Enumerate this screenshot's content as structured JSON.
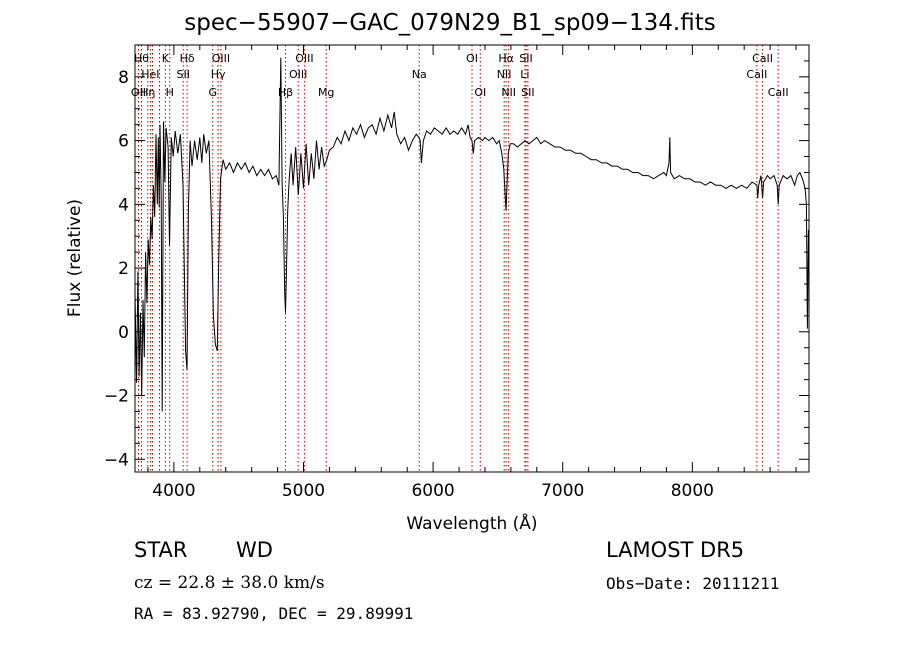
{
  "chart_data": {
    "type": "line",
    "title": "spec−55907−GAC_079N29_B1_sp09−134.fits",
    "xlabel": "Wavelength (Å)",
    "ylabel": "Flux (relative)",
    "xlim": [
      3700,
      8900
    ],
    "ylim": [
      -4.4,
      9.0
    ],
    "xticks": [
      4000,
      5000,
      6000,
      7000,
      8000
    ],
    "yticks": [
      -4,
      -2,
      0,
      2,
      4,
      6,
      8
    ],
    "series": [
      {
        "values": [
          [
            3700,
            1.2
          ],
          [
            3712,
            -1.6
          ],
          [
            3722,
            1.9
          ],
          [
            3732,
            -1.4
          ],
          [
            3742,
            0.6
          ],
          [
            3752,
            -2.0
          ],
          [
            3762,
            1.0
          ],
          [
            3772,
            -0.8
          ],
          [
            3782,
            2.5
          ],
          [
            3792,
            0.9
          ],
          [
            3802,
            2.9
          ],
          [
            3812,
            2.1
          ],
          [
            3822,
            3.6
          ],
          [
            3832,
            2.9
          ],
          [
            3842,
            4.6
          ],
          [
            3852,
            3.6
          ],
          [
            3862,
            6.2
          ],
          [
            3872,
            4.0
          ],
          [
            3880,
            6.1
          ],
          [
            3887,
            3.9
          ],
          [
            3893,
            6.5
          ],
          [
            3902,
            4.2
          ],
          [
            3910,
            -2.5
          ],
          [
            3920,
            6.6
          ],
          [
            3930,
            4.7
          ],
          [
            3940,
            6.4
          ],
          [
            3955,
            5.8
          ],
          [
            3966,
            2.7
          ],
          [
            3980,
            6.1
          ],
          [
            3995,
            5.5
          ],
          [
            4010,
            6.3
          ],
          [
            4030,
            5.6
          ],
          [
            4050,
            6.2
          ],
          [
            4070,
            4.6
          ],
          [
            4090,
            -0.6
          ],
          [
            4101,
            -1.2
          ],
          [
            4112,
            3.8
          ],
          [
            4125,
            6.0
          ],
          [
            4140,
            5.2
          ],
          [
            4160,
            6.0
          ],
          [
            4180,
            5.4
          ],
          [
            4200,
            6.1
          ],
          [
            4215,
            5.3
          ],
          [
            4230,
            6.2
          ],
          [
            4250,
            5.6
          ],
          [
            4270,
            6.0
          ],
          [
            4290,
            3.5
          ],
          [
            4305,
            0.5
          ],
          [
            4320,
            -0.4
          ],
          [
            4335,
            -0.6
          ],
          [
            4345,
            2.0
          ],
          [
            4360,
            4.8
          ],
          [
            4380,
            5.4
          ],
          [
            4400,
            5.1
          ],
          [
            4430,
            5.3
          ],
          [
            4460,
            5.0
          ],
          [
            4490,
            5.3
          ],
          [
            4520,
            5.1
          ],
          [
            4550,
            5.3
          ],
          [
            4580,
            5.0
          ],
          [
            4610,
            5.2
          ],
          [
            4640,
            4.9
          ],
          [
            4670,
            5.1
          ],
          [
            4700,
            4.9
          ],
          [
            4730,
            5.1
          ],
          [
            4760,
            4.8
          ],
          [
            4790,
            4.9
          ],
          [
            4810,
            4.6
          ],
          [
            4825,
            8.6
          ],
          [
            4835,
            4.7
          ],
          [
            4845,
            3.6
          ],
          [
            4855,
            1.2
          ],
          [
            4861,
            0.6
          ],
          [
            4868,
            1.8
          ],
          [
            4878,
            3.8
          ],
          [
            4890,
            4.8
          ],
          [
            4905,
            5.6
          ],
          [
            4920,
            4.6
          ],
          [
            4940,
            5.8
          ],
          [
            4960,
            4.3
          ],
          [
            4980,
            5.6
          ],
          [
            5000,
            4.5
          ],
          [
            5020,
            5.9
          ],
          [
            5040,
            4.6
          ],
          [
            5060,
            5.6
          ],
          [
            5080,
            4.8
          ],
          [
            5100,
            6.0
          ],
          [
            5120,
            5.1
          ],
          [
            5140,
            5.8
          ],
          [
            5160,
            5.2
          ],
          [
            5180,
            5.4
          ],
          [
            5200,
            5.7
          ],
          [
            5230,
            5.8
          ],
          [
            5260,
            6.1
          ],
          [
            5290,
            5.9
          ],
          [
            5320,
            6.3
          ],
          [
            5350,
            6.0
          ],
          [
            5380,
            6.4
          ],
          [
            5410,
            6.2
          ],
          [
            5440,
            6.5
          ],
          [
            5470,
            6.1
          ],
          [
            5500,
            6.4
          ],
          [
            5530,
            6.5
          ],
          [
            5560,
            6.2
          ],
          [
            5590,
            6.7
          ],
          [
            5620,
            6.3
          ],
          [
            5650,
            6.8
          ],
          [
            5680,
            6.4
          ],
          [
            5700,
            6.9
          ],
          [
            5720,
            6.2
          ],
          [
            5750,
            5.9
          ],
          [
            5780,
            6.1
          ],
          [
            5810,
            5.7
          ],
          [
            5840,
            6.0
          ],
          [
            5870,
            6.2
          ],
          [
            5890,
            6.1
          ],
          [
            5900,
            6.0
          ],
          [
            5910,
            5.3
          ],
          [
            5925,
            6.0
          ],
          [
            5950,
            6.3
          ],
          [
            5980,
            6.2
          ],
          [
            6010,
            6.4
          ],
          [
            6040,
            6.3
          ],
          [
            6070,
            6.2
          ],
          [
            6100,
            6.4
          ],
          [
            6130,
            6.2
          ],
          [
            6160,
            6.3
          ],
          [
            6190,
            6.2
          ],
          [
            6220,
            6.4
          ],
          [
            6250,
            6.2
          ],
          [
            6270,
            6.5
          ],
          [
            6285,
            6.1
          ],
          [
            6300,
            6.0
          ],
          [
            6310,
            5.6
          ],
          [
            6320,
            6.0
          ],
          [
            6350,
            6.1
          ],
          [
            6380,
            6.0
          ],
          [
            6400,
            6.1
          ],
          [
            6430,
            6.0
          ],
          [
            6460,
            6.1
          ],
          [
            6490,
            5.9
          ],
          [
            6510,
            6.0
          ],
          [
            6530,
            5.6
          ],
          [
            6545,
            5.1
          ],
          [
            6555,
            4.3
          ],
          [
            6563,
            3.8
          ],
          [
            6570,
            4.6
          ],
          [
            6580,
            5.6
          ],
          [
            6595,
            5.9
          ],
          [
            6620,
            5.9
          ],
          [
            6650,
            5.8
          ],
          [
            6680,
            5.9
          ],
          [
            6710,
            6.0
          ],
          [
            6740,
            5.9
          ],
          [
            6770,
            6.0
          ],
          [
            6800,
            6.1
          ],
          [
            6830,
            5.9
          ],
          [
            6860,
            6.0
          ],
          [
            6900,
            5.9
          ],
          [
            6940,
            5.8
          ],
          [
            6980,
            5.8
          ],
          [
            7020,
            5.7
          ],
          [
            7060,
            5.7
          ],
          [
            7100,
            5.6
          ],
          [
            7140,
            5.6
          ],
          [
            7180,
            5.5
          ],
          [
            7220,
            5.4
          ],
          [
            7260,
            5.4
          ],
          [
            7300,
            5.3
          ],
          [
            7340,
            5.3
          ],
          [
            7380,
            5.2
          ],
          [
            7420,
            5.2
          ],
          [
            7460,
            5.1
          ],
          [
            7500,
            5.1
          ],
          [
            7540,
            5.0
          ],
          [
            7580,
            5.0
          ],
          [
            7620,
            4.9
          ],
          [
            7660,
            4.9
          ],
          [
            7700,
            4.8
          ],
          [
            7740,
            4.9
          ],
          [
            7780,
            5.0
          ],
          [
            7800,
            4.9
          ],
          [
            7820,
            5.3
          ],
          [
            7826,
            6.1
          ],
          [
            7832,
            5.0
          ],
          [
            7860,
            4.8
          ],
          [
            7900,
            4.9
          ],
          [
            7940,
            4.8
          ],
          [
            7980,
            4.8
          ],
          [
            8020,
            4.7
          ],
          [
            8060,
            4.7
          ],
          [
            8100,
            4.6
          ],
          [
            8140,
            4.7
          ],
          [
            8180,
            4.6
          ],
          [
            8220,
            4.6
          ],
          [
            8260,
            4.5
          ],
          [
            8300,
            4.6
          ],
          [
            8340,
            4.5
          ],
          [
            8380,
            4.6
          ],
          [
            8420,
            4.5
          ],
          [
            8460,
            4.7
          ],
          [
            8498,
            4.6
          ],
          [
            8505,
            4.2
          ],
          [
            8512,
            4.6
          ],
          [
            8530,
            4.9
          ],
          [
            8542,
            4.2
          ],
          [
            8550,
            4.7
          ],
          [
            8580,
            4.9
          ],
          [
            8600,
            4.8
          ],
          [
            8630,
            4.9
          ],
          [
            8655,
            4.6
          ],
          [
            8662,
            4.0
          ],
          [
            8670,
            4.6
          ],
          [
            8700,
            4.9
          ],
          [
            8730,
            4.8
          ],
          [
            8760,
            4.9
          ],
          [
            8790,
            4.6
          ],
          [
            8810,
            4.9
          ],
          [
            8830,
            5.0
          ],
          [
            8850,
            4.8
          ],
          [
            8870,
            4.5
          ],
          [
            8880,
            4.0
          ],
          [
            8888,
            0.1
          ],
          [
            8895,
            3.2
          ]
        ]
      }
    ],
    "lines": [
      {
        "x": 3727,
        "label": "OII",
        "row": 3
      },
      {
        "x": 3750,
        "label": "Hθ",
        "row": 1
      },
      {
        "x": 3798,
        "label": "Hη",
        "row": 3
      },
      {
        "x": 3819,
        "label": "HeI",
        "row": 2
      },
      {
        "x": 3835,
        "label": "",
        "row": 0
      },
      {
        "x": 3889,
        "label": "",
        "row": 0
      },
      {
        "x": 3934,
        "label": "K",
        "row": 1
      },
      {
        "x": 3968,
        "label": "H",
        "row": 3
      },
      {
        "x": 4072,
        "label": "SII",
        "row": 2
      },
      {
        "x": 4102,
        "label": "Hδ",
        "row": 1
      },
      {
        "x": 4300,
        "label": "G",
        "row": 3
      },
      {
        "x": 4341,
        "label": "Hγ",
        "row": 2
      },
      {
        "x": 4363,
        "label": "OIII",
        "row": 1
      },
      {
        "x": 4861,
        "label": "Hβ",
        "row": 3
      },
      {
        "x": 4959,
        "label": "OIII",
        "row": 2
      },
      {
        "x": 5007,
        "label": "OIII",
        "row": 1
      },
      {
        "x": 5175,
        "label": "Mg",
        "row": 3
      },
      {
        "x": 5893,
        "label": "Na",
        "row": 2
      },
      {
        "x": 6300,
        "label": "OI",
        "row": 1
      },
      {
        "x": 6364,
        "label": "OI",
        "row": 3
      },
      {
        "x": 6548,
        "label": "NII",
        "row": 2
      },
      {
        "x": 6563,
        "label": "Hα",
        "row": 1
      },
      {
        "x": 6583,
        "label": "NII",
        "row": 3
      },
      {
        "x": 6708,
        "label": "Li",
        "row": 2
      },
      {
        "x": 6717,
        "label": "SII",
        "row": 1
      },
      {
        "x": 6731,
        "label": "SII",
        "row": 3
      },
      {
        "x": 8498,
        "label": "CaII",
        "row": 2
      },
      {
        "x": 8542,
        "label": "CaII",
        "row": 1
      },
      {
        "x": 8662,
        "label": "CaII",
        "row": 3
      }
    ]
  },
  "info": {
    "class_label": "STAR",
    "subclass": "WD",
    "survey": "LAMOST DR5",
    "cz": "cz = 22.8 ± 38.0 km/s",
    "obs_date": "Obs−Date: 20111211",
    "coords": "RA =  83.92790, DEC =  29.89991"
  }
}
